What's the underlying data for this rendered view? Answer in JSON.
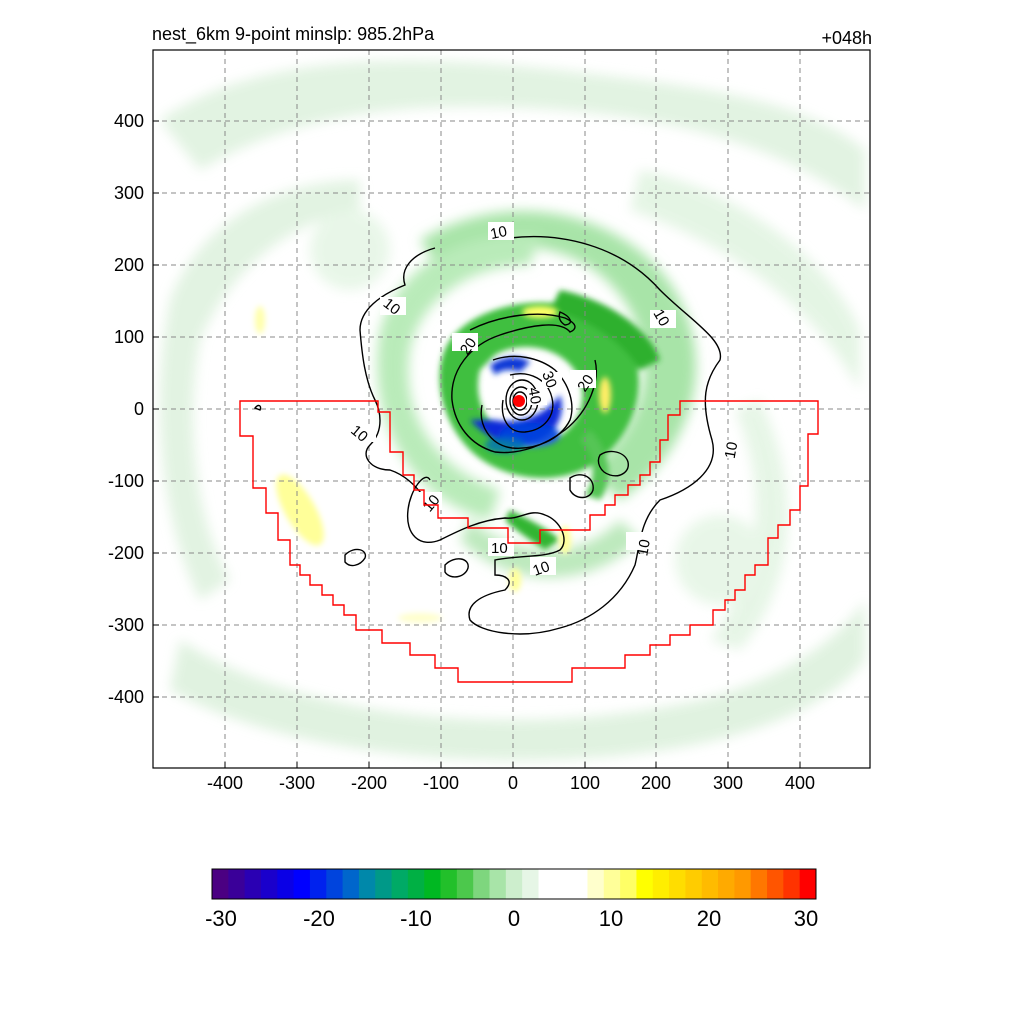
{
  "header": {
    "left_title": "nest_6km  9-point minslp: 985.2hPa",
    "right_title": "+048h"
  },
  "axes": {
    "x_ticks": [
      "-400",
      "-300",
      "-200",
      "-100",
      "0",
      "100",
      "200",
      "300",
      "400"
    ],
    "y_ticks": [
      "400",
      "300",
      "200",
      "100",
      "0",
      "-100",
      "-200",
      "-300",
      "-400"
    ],
    "grid": "dashed gray"
  },
  "contours": {
    "color": "#000000",
    "labels": [
      "10",
      "10",
      "10",
      "10",
      "10",
      "10",
      "10",
      "10",
      "10",
      "20",
      "20",
      "30",
      "40"
    ]
  },
  "overlay": {
    "boundary_color": "#ff0000",
    "center_marker_color": "#ff0000"
  },
  "colorbar": {
    "tick_labels": [
      "-30",
      "-20",
      "-10",
      "0",
      "10",
      "20",
      "30"
    ],
    "colors": [
      "#4b0082",
      "#3a0099",
      "#2a00b3",
      "#1a00cc",
      "#0a00e6",
      "#0000ff",
      "#0022ee",
      "#0044dd",
      "#0066cc",
      "#0088aa",
      "#009988",
      "#00aa66",
      "#00b044",
      "#00b822",
      "#22c02a",
      "#4cc84c",
      "#7ed67e",
      "#a8e4a8",
      "#cdeecd",
      "#e6f6e6",
      "#ffffff",
      "#ffffff",
      "#ffffff",
      "#ffffcc",
      "#ffff99",
      "#ffff66",
      "#ffff00",
      "#ffee00",
      "#ffdd00",
      "#ffcc00",
      "#ffbb00",
      "#ffaa00",
      "#ff9900",
      "#ff7700",
      "#ff5500",
      "#ff3300",
      "#ff0000"
    ]
  }
}
